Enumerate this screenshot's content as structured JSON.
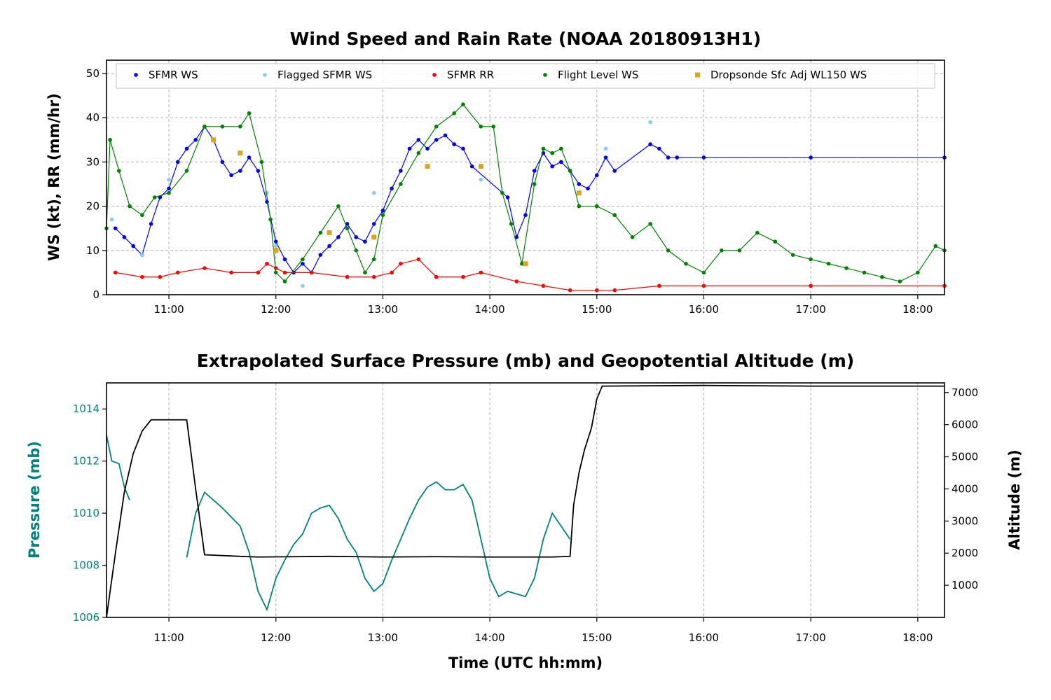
{
  "chart_data": [
    {
      "type": "scatter",
      "title": "Wind Speed and Rain Rate (NOAA 20180913H1)",
      "xlabel": "",
      "ylabel": "WS (kt), RR (mm/hr)",
      "xlim": [
        "10:25",
        "18:15"
      ],
      "ylim": [
        0,
        53
      ],
      "x_ticks": [
        "11:00",
        "12:00",
        "13:00",
        "14:00",
        "15:00",
        "16:00",
        "17:00",
        "18:00"
      ],
      "y_ticks": [
        "0",
        "10",
        "20",
        "30",
        "40",
        "50"
      ],
      "grid": true,
      "legend_position": "top",
      "colors": {
        "sfmr_ws": "#0000ee",
        "flagged_ws": "#87ceeb",
        "sfmr_rr": "#ff0000",
        "flight_ws": "#008000",
        "dropsonde": "#daa520"
      },
      "series": [
        {
          "name": "SFMR WS",
          "marker": "dot",
          "color": "#0000ee",
          "points": [
            [
              "10:30",
              15
            ],
            [
              "10:35",
              13
            ],
            [
              "10:40",
              11
            ],
            [
              "10:45",
              9
            ],
            [
              "10:50",
              16
            ],
            [
              "10:55",
              22
            ],
            [
              "11:00",
              24
            ],
            [
              "11:05",
              30
            ],
            [
              "11:10",
              33
            ],
            [
              "11:15",
              35
            ],
            [
              "11:20",
              38
            ],
            [
              "11:25",
              35
            ],
            [
              "11:30",
              30
            ],
            [
              "11:35",
              27
            ],
            [
              "11:40",
              28
            ],
            [
              "11:45",
              31
            ],
            [
              "11:50",
              28
            ],
            [
              "11:55",
              21
            ],
            [
              "12:00",
              12
            ],
            [
              "12:05",
              8
            ],
            [
              "12:10",
              5
            ],
            [
              "12:15",
              7
            ],
            [
              "12:20",
              5
            ],
            [
              "12:25",
              9
            ],
            [
              "12:30",
              11
            ],
            [
              "12:35",
              13
            ],
            [
              "12:40",
              16
            ],
            [
              "12:45",
              13
            ],
            [
              "12:50",
              12
            ],
            [
              "12:55",
              16
            ],
            [
              "13:00",
              19
            ],
            [
              "13:05",
              24
            ],
            [
              "13:10",
              28
            ],
            [
              "13:15",
              33
            ],
            [
              "13:20",
              35
            ],
            [
              "13:25",
              33
            ],
            [
              "13:30",
              35
            ],
            [
              "13:35",
              36
            ],
            [
              "13:40",
              34
            ],
            [
              "13:45",
              33
            ],
            [
              "13:50",
              29
            ],
            [
              "14:10",
              22
            ],
            [
              "14:15",
              13
            ],
            [
              "14:20",
              18
            ],
            [
              "14:25",
              28
            ],
            [
              "14:30",
              32
            ],
            [
              "14:35",
              29
            ],
            [
              "14:40",
              30
            ],
            [
              "14:45",
              28
            ],
            [
              "14:50",
              25
            ],
            [
              "14:55",
              24
            ],
            [
              "15:00",
              27
            ],
            [
              "15:05",
              31
            ],
            [
              "15:10",
              28
            ],
            [
              "15:30",
              34
            ],
            [
              "15:35",
              33
            ],
            [
              "15:40",
              31
            ],
            [
              "15:45",
              31
            ],
            [
              "16:00",
              31
            ],
            [
              "17:00",
              31
            ],
            [
              "18:15",
              31
            ]
          ]
        },
        {
          "name": "Flagged SFMR WS",
          "marker": "dot",
          "color": "#87ceeb",
          "points": [
            [
              "10:28",
              17
            ],
            [
              "10:45",
              9
            ],
            [
              "11:00",
              26
            ],
            [
              "11:55",
              23
            ],
            [
              "12:00",
              11
            ],
            [
              "12:15",
              2
            ],
            [
              "12:55",
              23
            ],
            [
              "13:55",
              26
            ],
            [
              "15:05",
              33
            ],
            [
              "15:30",
              39
            ]
          ]
        },
        {
          "name": "SFMR RR",
          "marker": "dot",
          "color": "#ff0000",
          "points": [
            [
              "10:30",
              5
            ],
            [
              "10:45",
              4
            ],
            [
              "10:55",
              4
            ],
            [
              "11:05",
              5
            ],
            [
              "11:20",
              6
            ],
            [
              "11:35",
              5
            ],
            [
              "11:50",
              5
            ],
            [
              "11:55",
              7
            ],
            [
              "12:00",
              6
            ],
            [
              "12:05",
              5
            ],
            [
              "12:20",
              5
            ],
            [
              "12:40",
              4
            ],
            [
              "12:55",
              4
            ],
            [
              "13:05",
              5
            ],
            [
              "13:10",
              7
            ],
            [
              "13:20",
              8
            ],
            [
              "13:30",
              4
            ],
            [
              "13:45",
              4
            ],
            [
              "13:55",
              5
            ],
            [
              "14:15",
              3
            ],
            [
              "14:30",
              2
            ],
            [
              "14:45",
              1
            ],
            [
              "15:00",
              1
            ],
            [
              "15:10",
              1
            ],
            [
              "15:35",
              2
            ],
            [
              "16:00",
              2
            ],
            [
              "17:00",
              2
            ],
            [
              "18:15",
              2
            ]
          ]
        },
        {
          "name": "Flight Level WS",
          "marker": "dot",
          "color": "#008000",
          "points": [
            [
              "10:25",
              15
            ],
            [
              "10:27",
              35
            ],
            [
              "10:32",
              28
            ],
            [
              "10:38",
              20
            ],
            [
              "10:45",
              18
            ],
            [
              "10:52",
              22
            ],
            [
              "11:00",
              23
            ],
            [
              "11:10",
              28
            ],
            [
              "11:20",
              38
            ],
            [
              "11:30",
              38
            ],
            [
              "11:40",
              38
            ],
            [
              "11:45",
              41
            ],
            [
              "11:52",
              30
            ],
            [
              "11:57",
              17
            ],
            [
              "12:00",
              5
            ],
            [
              "12:05",
              3
            ],
            [
              "12:15",
              8
            ],
            [
              "12:25",
              14
            ],
            [
              "12:35",
              20
            ],
            [
              "12:40",
              15
            ],
            [
              "12:45",
              10
            ],
            [
              "12:50",
              5
            ],
            [
              "12:55",
              8
            ],
            [
              "13:00",
              18
            ],
            [
              "13:10",
              25
            ],
            [
              "13:20",
              32
            ],
            [
              "13:30",
              38
            ],
            [
              "13:40",
              41
            ],
            [
              "13:45",
              43
            ],
            [
              "13:55",
              38
            ],
            [
              "14:02",
              38
            ],
            [
              "14:07",
              23
            ],
            [
              "14:12",
              16
            ],
            [
              "14:18",
              7
            ],
            [
              "14:25",
              25
            ],
            [
              "14:30",
              33
            ],
            [
              "14:35",
              32
            ],
            [
              "14:40",
              33
            ],
            [
              "14:45",
              28
            ],
            [
              "14:50",
              20
            ],
            [
              "15:00",
              20
            ],
            [
              "15:10",
              18
            ],
            [
              "15:20",
              13
            ],
            [
              "15:30",
              16
            ],
            [
              "15:40",
              10
            ],
            [
              "15:50",
              7
            ],
            [
              "16:00",
              5
            ],
            [
              "16:10",
              10
            ],
            [
              "16:20",
              10
            ],
            [
              "16:30",
              14
            ],
            [
              "16:40",
              12
            ],
            [
              "16:50",
              9
            ],
            [
              "17:00",
              8
            ],
            [
              "17:10",
              7
            ],
            [
              "17:20",
              6
            ],
            [
              "17:30",
              5
            ],
            [
              "17:40",
              4
            ],
            [
              "17:50",
              3
            ],
            [
              "18:00",
              5
            ],
            [
              "18:10",
              11
            ],
            [
              "18:15",
              10
            ]
          ]
        },
        {
          "name": "Dropsonde Sfc Adj WL150 WS",
          "marker": "square",
          "color": "#daa520",
          "points": [
            [
              "11:25",
              35
            ],
            [
              "11:40",
              32
            ],
            [
              "12:00",
              10
            ],
            [
              "12:30",
              14
            ],
            [
              "12:55",
              13
            ],
            [
              "13:25",
              29
            ],
            [
              "13:55",
              29
            ],
            [
              "14:20",
              7
            ],
            [
              "14:50",
              23
            ]
          ]
        }
      ]
    },
    {
      "type": "line",
      "title": "Extrapolated Surface Pressure (mb) and Geopotential Altitude (m)",
      "xlabel": "Time (UTC hh:mm)",
      "ylabel_left": "Pressure (mb)",
      "ylabel_right": "Altitude (m)",
      "xlim": [
        "10:25",
        "18:15"
      ],
      "ylim_left": [
        1006,
        1015
      ],
      "ylim_right": [
        0,
        7300
      ],
      "x_ticks": [
        "11:00",
        "12:00",
        "13:00",
        "14:00",
        "15:00",
        "16:00",
        "17:00",
        "18:00"
      ],
      "y_ticks_left": [
        "1006",
        "1008",
        "1010",
        "1012",
        "1014"
      ],
      "y_ticks_right": [
        "1000",
        "2000",
        "3000",
        "4000",
        "5000",
        "6000",
        "7000"
      ],
      "grid": true,
      "colors": {
        "pressure": "#008080",
        "altitude": "#000000"
      },
      "series": [
        {
          "name": "Pressure (mb)",
          "axis": "left",
          "color": "#008080",
          "points": [
            [
              "10:25",
              1013
            ],
            [
              "10:28",
              1012
            ],
            [
              "10:32",
              1011.9
            ],
            [
              "10:35",
              1011
            ],
            [
              "10:38",
              1010.5
            ],
            [
              "11:10",
              1008.3
            ],
            [
              "11:15",
              1010
            ],
            [
              "11:20",
              1010.8
            ],
            [
              "11:25",
              1010.5
            ],
            [
              "11:30",
              1010.2
            ],
            [
              "11:40",
              1009.5
            ],
            [
              "11:45",
              1008.5
            ],
            [
              "11:50",
              1007
            ],
            [
              "11:55",
              1006.3
            ],
            [
              "12:00",
              1007.5
            ],
            [
              "12:05",
              1008.2
            ],
            [
              "12:10",
              1008.8
            ],
            [
              "12:15",
              1009.2
            ],
            [
              "12:20",
              1010
            ],
            [
              "12:25",
              1010.2
            ],
            [
              "12:30",
              1010.3
            ],
            [
              "12:35",
              1009.8
            ],
            [
              "12:40",
              1009
            ],
            [
              "12:45",
              1008.5
            ],
            [
              "12:50",
              1007.5
            ],
            [
              "12:55",
              1007
            ],
            [
              "13:00",
              1007.3
            ],
            [
              "13:05",
              1008.2
            ],
            [
              "13:10",
              1009
            ],
            [
              "13:15",
              1009.8
            ],
            [
              "13:20",
              1010.5
            ],
            [
              "13:25",
              1011
            ],
            [
              "13:30",
              1011.2
            ],
            [
              "13:35",
              1010.9
            ],
            [
              "13:40",
              1010.9
            ],
            [
              "13:45",
              1011.1
            ],
            [
              "13:50",
              1010.5
            ],
            [
              "13:55",
              1009
            ],
            [
              "14:00",
              1007.5
            ],
            [
              "14:05",
              1006.8
            ],
            [
              "14:10",
              1007
            ],
            [
              "14:15",
              1006.9
            ],
            [
              "14:20",
              1006.8
            ],
            [
              "14:25",
              1007.5
            ],
            [
              "14:30",
              1009
            ],
            [
              "14:35",
              1010
            ],
            [
              "14:40",
              1009.5
            ],
            [
              "14:45",
              1009
            ]
          ]
        },
        {
          "name": "Altitude (m)",
          "axis": "right",
          "color": "#000000",
          "points": [
            [
              "10:25",
              0
            ],
            [
              "10:30",
              2000
            ],
            [
              "10:35",
              3900
            ],
            [
              "10:40",
              5100
            ],
            [
              "10:45",
              5800
            ],
            [
              "10:50",
              6150
            ],
            [
              "11:10",
              6150
            ],
            [
              "11:15",
              4000
            ],
            [
              "11:20",
              1950
            ],
            [
              "11:40",
              1900
            ],
            [
              "11:50",
              1880
            ],
            [
              "12:30",
              1900
            ],
            [
              "13:00",
              1880
            ],
            [
              "13:30",
              1890
            ],
            [
              "14:00",
              1880
            ],
            [
              "14:35",
              1880
            ],
            [
              "14:45",
              1900
            ],
            [
              "14:47",
              3500
            ],
            [
              "14:50",
              4500
            ],
            [
              "14:53",
              5200
            ],
            [
              "14:57",
              5900
            ],
            [
              "15:00",
              6800
            ],
            [
              "15:03",
              7200
            ],
            [
              "16:00",
              7220
            ],
            [
              "17:00",
              7200
            ],
            [
              "18:15",
              7200
            ]
          ]
        }
      ]
    }
  ]
}
